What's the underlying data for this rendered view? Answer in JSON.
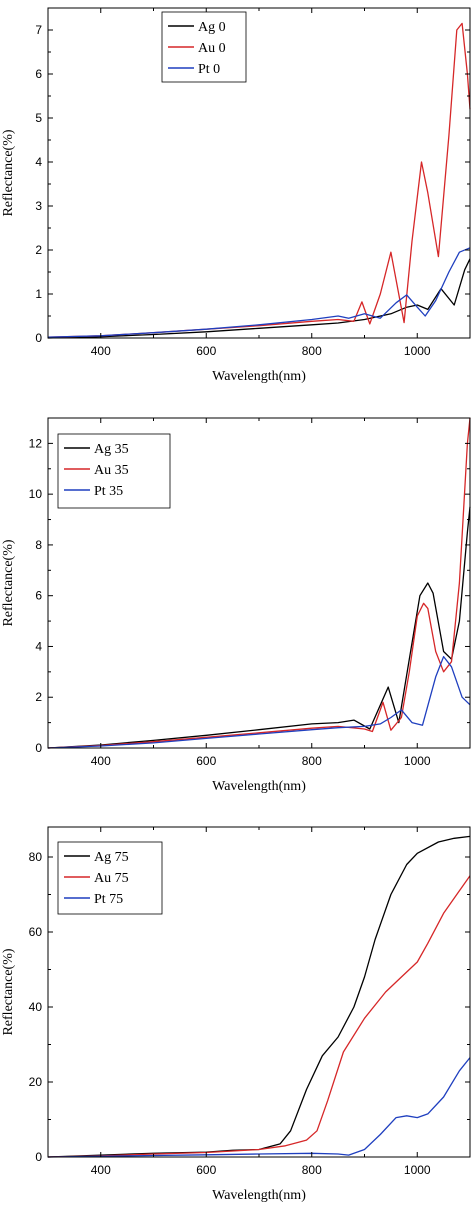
{
  "chart_data": [
    {
      "type": "line",
      "xlabel": "Wavelength(nm)",
      "ylabel": "Reflectance(%)",
      "xlim": [
        300,
        1100
      ],
      "ylim": [
        0,
        7.5
      ],
      "xticks": [
        400,
        600,
        800,
        1000
      ],
      "yticks": [
        0,
        1,
        2,
        3,
        4,
        5,
        6,
        7
      ],
      "grid": false,
      "legend_position": "top-left",
      "series": [
        {
          "name": "Ag 0",
          "color": "#000000",
          "x": [
            300,
            400,
            500,
            600,
            700,
            800,
            850,
            900,
            950,
            980,
            1000,
            1020,
            1045,
            1070,
            1090,
            1100
          ],
          "y": [
            0.0,
            0.03,
            0.08,
            0.14,
            0.22,
            0.3,
            0.34,
            0.42,
            0.55,
            0.7,
            0.75,
            0.65,
            1.12,
            0.75,
            1.55,
            1.8
          ]
        },
        {
          "name": "Au 0",
          "color": "#d62728",
          "x": [
            300,
            400,
            500,
            600,
            700,
            800,
            850,
            880,
            895,
            910,
            930,
            950,
            975,
            990,
            1008,
            1020,
            1040,
            1060,
            1075,
            1085,
            1095,
            1100
          ],
          "y": [
            0.02,
            0.05,
            0.12,
            0.2,
            0.28,
            0.38,
            0.42,
            0.38,
            0.82,
            0.32,
            1.0,
            1.95,
            0.35,
            2.2,
            4.0,
            3.3,
            1.85,
            4.6,
            7.0,
            7.15,
            6.0,
            5.2
          ]
        },
        {
          "name": "Pt 0",
          "color": "#1f3fbf",
          "x": [
            300,
            400,
            500,
            600,
            700,
            800,
            850,
            870,
            900,
            930,
            960,
            980,
            1000,
            1015,
            1035,
            1060,
            1080,
            1100
          ],
          "y": [
            0.02,
            0.05,
            0.12,
            0.2,
            0.3,
            0.42,
            0.5,
            0.45,
            0.55,
            0.45,
            0.8,
            0.98,
            0.7,
            0.5,
            0.85,
            1.5,
            1.95,
            2.05
          ]
        }
      ]
    },
    {
      "type": "line",
      "xlabel": "Wavelength(nm)",
      "ylabel": "Reflectance(%)",
      "xlim": [
        300,
        1100
      ],
      "ylim": [
        0,
        13
      ],
      "xticks": [
        400,
        600,
        800,
        1000
      ],
      "yticks": [
        0,
        2,
        4,
        6,
        8,
        10,
        12
      ],
      "grid": false,
      "legend_position": "top-left",
      "series": [
        {
          "name": "Ag 35",
          "color": "#000000",
          "x": [
            300,
            400,
            500,
            600,
            700,
            800,
            850,
            880,
            910,
            945,
            965,
            985,
            1005,
            1020,
            1030,
            1050,
            1065,
            1080,
            1095,
            1100
          ],
          "y": [
            0.0,
            0.12,
            0.3,
            0.5,
            0.72,
            0.95,
            1.0,
            1.1,
            0.75,
            2.4,
            1.0,
            3.5,
            6.0,
            6.5,
            6.1,
            3.8,
            3.5,
            5.0,
            8.5,
            9.5
          ]
        },
        {
          "name": "Au 35",
          "color": "#d62728",
          "x": [
            300,
            400,
            500,
            600,
            700,
            800,
            850,
            900,
            915,
            935,
            950,
            970,
            985,
            1000,
            1012,
            1020,
            1035,
            1050,
            1065,
            1080,
            1095,
            1100
          ],
          "y": [
            0.0,
            0.1,
            0.25,
            0.42,
            0.6,
            0.78,
            0.85,
            0.75,
            0.65,
            1.8,
            0.7,
            1.2,
            3.0,
            5.2,
            5.7,
            5.5,
            3.8,
            3.0,
            3.4,
            6.5,
            12.0,
            13.0
          ]
        },
        {
          "name": "Pt 35",
          "color": "#1f3fbf",
          "x": [
            300,
            400,
            500,
            600,
            700,
            800,
            850,
            900,
            930,
            950,
            970,
            990,
            1010,
            1035,
            1050,
            1065,
            1085,
            1100
          ],
          "y": [
            0.0,
            0.08,
            0.2,
            0.38,
            0.55,
            0.72,
            0.8,
            0.85,
            0.95,
            1.2,
            1.5,
            1.0,
            0.9,
            2.8,
            3.6,
            3.2,
            2.0,
            1.7
          ]
        }
      ]
    },
    {
      "type": "line",
      "xlabel": "Wavelength(nm)",
      "ylabel": "Reflectance(%)",
      "xlim": [
        300,
        1100
      ],
      "ylim": [
        0,
        88
      ],
      "xticks": [
        400,
        600,
        800,
        1000
      ],
      "yticks": [
        0,
        20,
        40,
        60,
        80
      ],
      "grid": false,
      "legend_position": "top-left",
      "series": [
        {
          "name": "Ag 75",
          "color": "#000000",
          "x": [
            300,
            400,
            500,
            600,
            650,
            700,
            740,
            760,
            790,
            820,
            850,
            880,
            900,
            920,
            950,
            980,
            1000,
            1040,
            1070,
            1100
          ],
          "y": [
            0.0,
            0.5,
            1.0,
            1.3,
            1.8,
            2.0,
            3.5,
            7.0,
            18.0,
            27.0,
            32.0,
            40.0,
            48.0,
            58.0,
            70.0,
            78.0,
            81.0,
            84.0,
            85.0,
            85.5
          ]
        },
        {
          "name": "Au 75",
          "color": "#d62728",
          "x": [
            300,
            400,
            500,
            600,
            700,
            750,
            790,
            810,
            830,
            860,
            900,
            940,
            970,
            1000,
            1020,
            1050,
            1080,
            1100
          ],
          "y": [
            0.0,
            0.3,
            0.8,
            1.2,
            2.0,
            3.0,
            4.5,
            7.0,
            15.0,
            28.0,
            37.0,
            44.0,
            48.0,
            52.0,
            57.0,
            65.0,
            71.0,
            75.0
          ]
        },
        {
          "name": "Pt 75",
          "color": "#1f3fbf",
          "x": [
            300,
            400,
            500,
            600,
            700,
            800,
            850,
            870,
            900,
            930,
            960,
            980,
            1000,
            1020,
            1050,
            1080,
            1100
          ],
          "y": [
            0.0,
            0.2,
            0.4,
            0.6,
            0.8,
            1.0,
            0.8,
            0.5,
            2.0,
            6.0,
            10.5,
            11.0,
            10.5,
            11.5,
            16.0,
            23.0,
            26.5
          ]
        }
      ]
    }
  ]
}
